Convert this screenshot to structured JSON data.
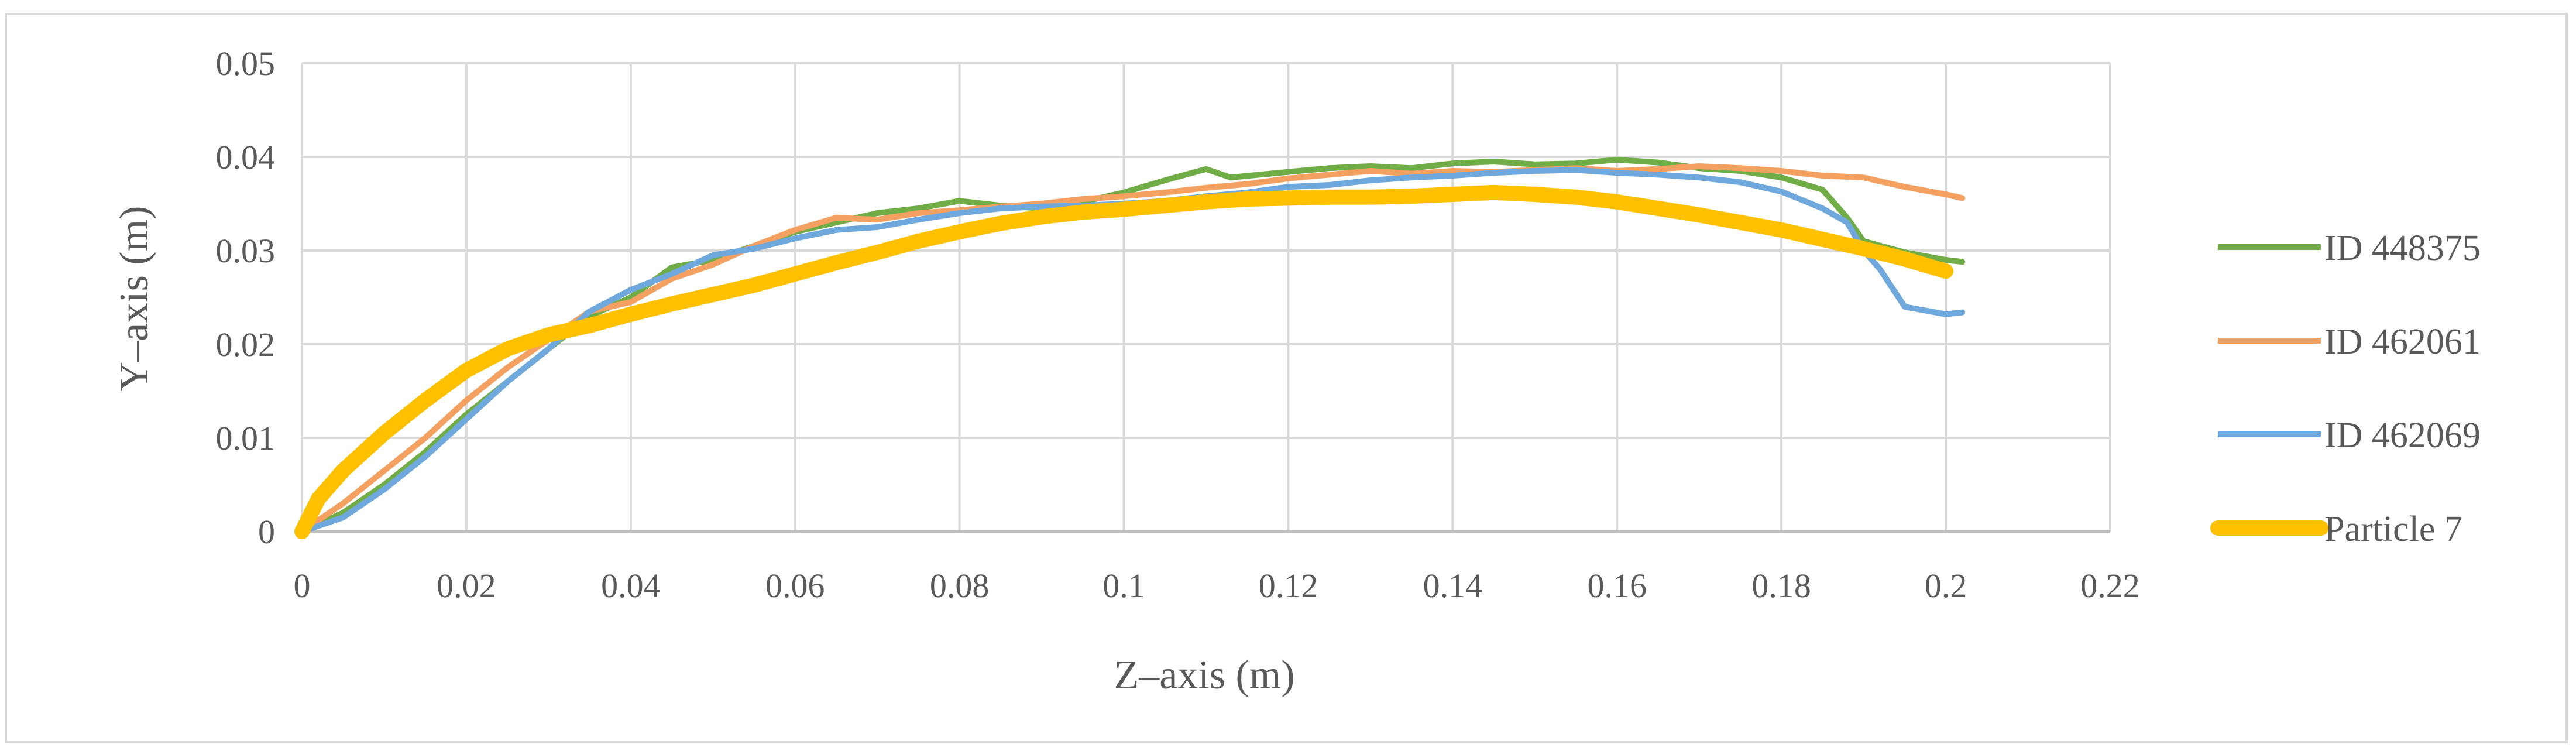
{
  "chart_data": {
    "type": "line",
    "title": "",
    "xlabel": "Z–axis (m)",
    "ylabel": "Y–axis (m)",
    "xlim": [
      0,
      0.22
    ],
    "ylim": [
      0,
      0.05
    ],
    "x_ticks": [
      "0",
      "0.02",
      "0.04",
      "0.06",
      "0.08",
      "0.1",
      "0.12",
      "0.14",
      "0.16",
      "0.18",
      "0.2",
      "0.22"
    ],
    "y_ticks": [
      "0",
      "0.01",
      "0.02",
      "0.03",
      "0.04",
      "0.05"
    ],
    "grid": true,
    "legend_position": "right",
    "series": [
      {
        "name": "ID 448375",
        "color": "#70ad47",
        "points": [
          [
            0,
            0
          ],
          [
            0.005,
            0.002
          ],
          [
            0.01,
            0.005
          ],
          [
            0.015,
            0.0085
          ],
          [
            0.02,
            0.0125
          ],
          [
            0.025,
            0.016
          ],
          [
            0.03,
            0.0195
          ],
          [
            0.035,
            0.023
          ],
          [
            0.04,
            0.025
          ],
          [
            0.045,
            0.0282
          ],
          [
            0.05,
            0.029
          ],
          [
            0.055,
            0.0305
          ],
          [
            0.06,
            0.032
          ],
          [
            0.065,
            0.033
          ],
          [
            0.07,
            0.034
          ],
          [
            0.075,
            0.0345
          ],
          [
            0.08,
            0.0353
          ],
          [
            0.085,
            0.0348
          ],
          [
            0.09,
            0.0345
          ],
          [
            0.095,
            0.0352
          ],
          [
            0.1,
            0.0362
          ],
          [
            0.105,
            0.0375
          ],
          [
            0.11,
            0.0387
          ],
          [
            0.113,
            0.0378
          ],
          [
            0.12,
            0.0384
          ],
          [
            0.125,
            0.0388
          ],
          [
            0.13,
            0.039
          ],
          [
            0.135,
            0.0388
          ],
          [
            0.14,
            0.0393
          ],
          [
            0.145,
            0.0395
          ],
          [
            0.15,
            0.0392
          ],
          [
            0.155,
            0.0393
          ],
          [
            0.16,
            0.0397
          ],
          [
            0.165,
            0.0394
          ],
          [
            0.17,
            0.0388
          ],
          [
            0.175,
            0.0385
          ],
          [
            0.18,
            0.0378
          ],
          [
            0.185,
            0.0365
          ],
          [
            0.188,
            0.0335
          ],
          [
            0.19,
            0.031
          ],
          [
            0.195,
            0.0298
          ],
          [
            0.2,
            0.029
          ],
          [
            0.202,
            0.0288
          ]
        ]
      },
      {
        "name": "ID 462061",
        "color": "#f4a060",
        "points": [
          [
            0,
            0
          ],
          [
            0.005,
            0.003
          ],
          [
            0.01,
            0.0065
          ],
          [
            0.015,
            0.01
          ],
          [
            0.02,
            0.014
          ],
          [
            0.025,
            0.0175
          ],
          [
            0.03,
            0.0205
          ],
          [
            0.035,
            0.0235
          ],
          [
            0.04,
            0.0245
          ],
          [
            0.045,
            0.027
          ],
          [
            0.05,
            0.0285
          ],
          [
            0.055,
            0.0305
          ],
          [
            0.06,
            0.0322
          ],
          [
            0.065,
            0.0335
          ],
          [
            0.07,
            0.0333
          ],
          [
            0.075,
            0.034
          ],
          [
            0.08,
            0.0343
          ],
          [
            0.085,
            0.0347
          ],
          [
            0.09,
            0.035
          ],
          [
            0.095,
            0.0355
          ],
          [
            0.1,
            0.0358
          ],
          [
            0.105,
            0.0362
          ],
          [
            0.11,
            0.0367
          ],
          [
            0.115,
            0.0371
          ],
          [
            0.12,
            0.0377
          ],
          [
            0.125,
            0.0381
          ],
          [
            0.13,
            0.0385
          ],
          [
            0.135,
            0.0382
          ],
          [
            0.14,
            0.0385
          ],
          [
            0.145,
            0.0384
          ],
          [
            0.15,
            0.0386
          ],
          [
            0.155,
            0.0388
          ],
          [
            0.16,
            0.0385
          ],
          [
            0.165,
            0.0387
          ],
          [
            0.17,
            0.039
          ],
          [
            0.175,
            0.0388
          ],
          [
            0.18,
            0.0385
          ],
          [
            0.185,
            0.038
          ],
          [
            0.19,
            0.0378
          ],
          [
            0.195,
            0.0368
          ],
          [
            0.2,
            0.036
          ],
          [
            0.202,
            0.0356
          ]
        ]
      },
      {
        "name": "ID 462069",
        "color": "#6fa8dc",
        "points": [
          [
            0,
            0
          ],
          [
            0.005,
            0.0015
          ],
          [
            0.01,
            0.0045
          ],
          [
            0.015,
            0.008
          ],
          [
            0.02,
            0.012
          ],
          [
            0.025,
            0.016
          ],
          [
            0.03,
            0.0195
          ],
          [
            0.035,
            0.0235
          ],
          [
            0.04,
            0.0258
          ],
          [
            0.045,
            0.0275
          ],
          [
            0.05,
            0.0295
          ],
          [
            0.055,
            0.0302
          ],
          [
            0.06,
            0.0313
          ],
          [
            0.065,
            0.0322
          ],
          [
            0.07,
            0.0325
          ],
          [
            0.075,
            0.0333
          ],
          [
            0.08,
            0.034
          ],
          [
            0.085,
            0.0345
          ],
          [
            0.09,
            0.0347
          ],
          [
            0.095,
            0.0348
          ],
          [
            0.1,
            0.035
          ],
          [
            0.105,
            0.0353
          ],
          [
            0.11,
            0.0358
          ],
          [
            0.115,
            0.0362
          ],
          [
            0.12,
            0.0368
          ],
          [
            0.125,
            0.037
          ],
          [
            0.13,
            0.0375
          ],
          [
            0.135,
            0.0378
          ],
          [
            0.14,
            0.038
          ],
          [
            0.145,
            0.0383
          ],
          [
            0.15,
            0.0385
          ],
          [
            0.155,
            0.0386
          ],
          [
            0.16,
            0.0383
          ],
          [
            0.165,
            0.0381
          ],
          [
            0.17,
            0.0378
          ],
          [
            0.175,
            0.0373
          ],
          [
            0.18,
            0.0363
          ],
          [
            0.185,
            0.0345
          ],
          [
            0.188,
            0.033
          ],
          [
            0.19,
            0.03
          ],
          [
            0.192,
            0.028
          ],
          [
            0.195,
            0.024
          ],
          [
            0.2,
            0.0232
          ],
          [
            0.202,
            0.0234
          ]
        ]
      },
      {
        "name": "Particle 7",
        "color": "#ffc000",
        "points": [
          [
            0,
            0
          ],
          [
            0.002,
            0.0035
          ],
          [
            0.005,
            0.0065
          ],
          [
            0.01,
            0.0105
          ],
          [
            0.015,
            0.014
          ],
          [
            0.02,
            0.0172
          ],
          [
            0.025,
            0.0195
          ],
          [
            0.03,
            0.021
          ],
          [
            0.035,
            0.022
          ],
          [
            0.04,
            0.0232
          ],
          [
            0.045,
            0.0243
          ],
          [
            0.05,
            0.0253
          ],
          [
            0.055,
            0.0263
          ],
          [
            0.06,
            0.0275
          ],
          [
            0.065,
            0.0287
          ],
          [
            0.07,
            0.0298
          ],
          [
            0.075,
            0.031
          ],
          [
            0.08,
            0.032
          ],
          [
            0.085,
            0.0329
          ],
          [
            0.09,
            0.0336
          ],
          [
            0.095,
            0.0341
          ],
          [
            0.1,
            0.0344
          ],
          [
            0.105,
            0.0348
          ],
          [
            0.11,
            0.0352
          ],
          [
            0.115,
            0.0355
          ],
          [
            0.12,
            0.0356
          ],
          [
            0.125,
            0.0357
          ],
          [
            0.13,
            0.0357
          ],
          [
            0.135,
            0.0358
          ],
          [
            0.14,
            0.036
          ],
          [
            0.145,
            0.0362
          ],
          [
            0.15,
            0.036
          ],
          [
            0.155,
            0.0357
          ],
          [
            0.16,
            0.0352
          ],
          [
            0.165,
            0.0345
          ],
          [
            0.17,
            0.0338
          ],
          [
            0.175,
            0.033
          ],
          [
            0.18,
            0.0322
          ],
          [
            0.185,
            0.0312
          ],
          [
            0.19,
            0.0302
          ],
          [
            0.195,
            0.0291
          ],
          [
            0.2,
            0.0278
          ]
        ]
      }
    ]
  }
}
